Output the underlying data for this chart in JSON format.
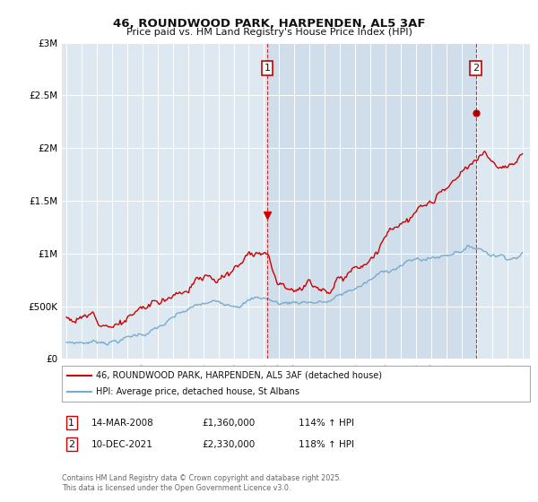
{
  "title": "46, ROUNDWOOD PARK, HARPENDEN, AL5 3AF",
  "subtitle": "Price paid vs. HM Land Registry's House Price Index (HPI)",
  "background_color": "#ffffff",
  "plot_bg_color": "#dde8f0",
  "plot_bg_shaded": "#c8d8e8",
  "grid_color": "#ffffff",
  "ylim": [
    0,
    3000000
  ],
  "yticks": [
    0,
    500000,
    1000000,
    1500000,
    2000000,
    2500000,
    3000000
  ],
  "ytick_labels": [
    "£0",
    "£500K",
    "£1M",
    "£1.5M",
    "£2M",
    "£2.5M",
    "£3M"
  ],
  "red_line_color": "#cc0000",
  "blue_line_color": "#7aaacf",
  "vline_color": "#cc0000",
  "marker1_x": 2008.21,
  "marker1_y": 1360000,
  "marker2_x": 2021.95,
  "marker2_y": 2330000,
  "annotation_box_color": "#cc0000",
  "legend_red": "46, ROUNDWOOD PARK, HARPENDEN, AL5 3AF (detached house)",
  "legend_blue": "HPI: Average price, detached house, St Albans",
  "copyright": "Contains HM Land Registry data © Crown copyright and database right 2025.\nThis data is licensed under the Open Government Licence v3.0.",
  "xlim_left": 1994.7,
  "xlim_right": 2025.5
}
